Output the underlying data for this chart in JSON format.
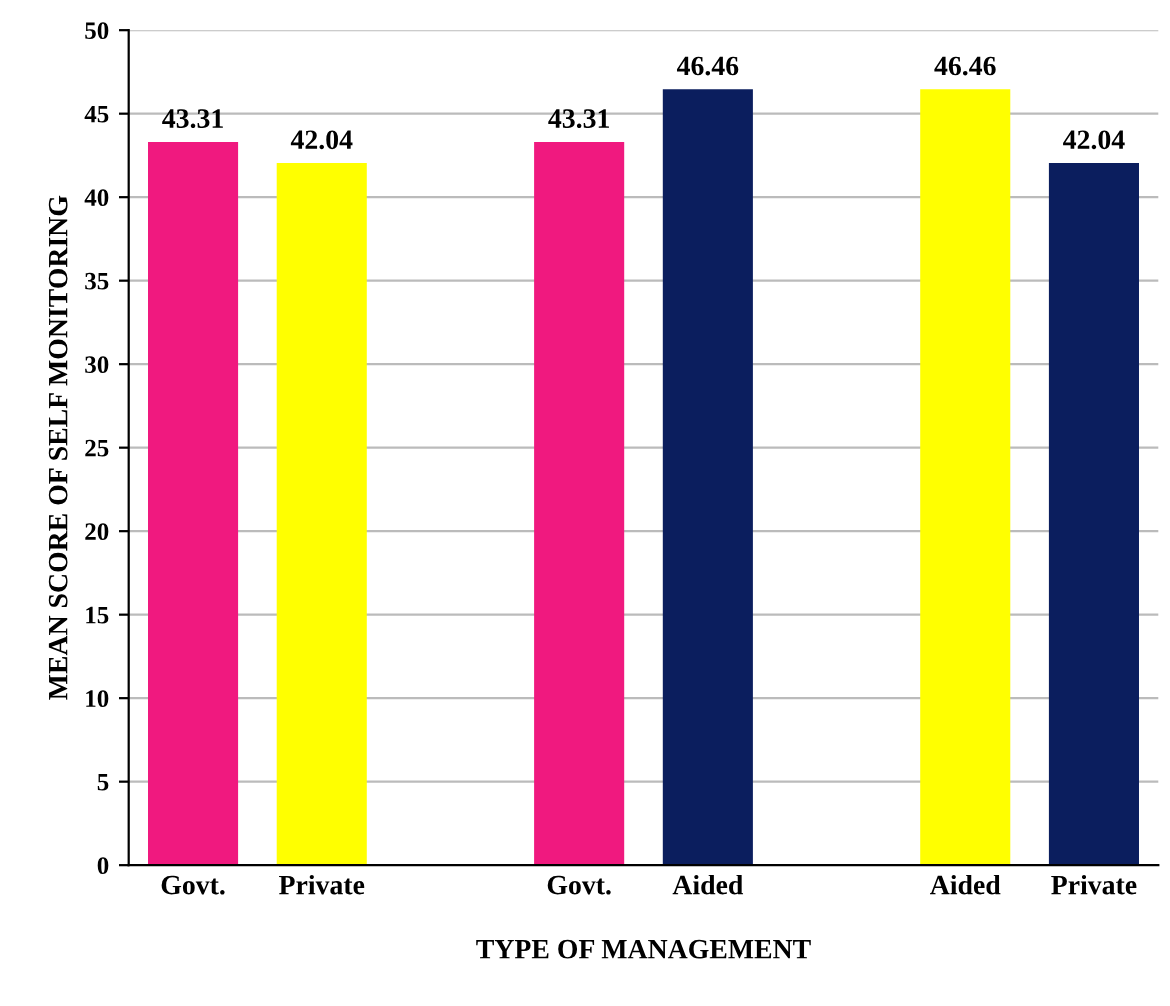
{
  "chart_data": {
    "type": "bar",
    "categories": [
      "Govt.",
      "Private",
      null,
      "Govt.",
      "Aided",
      null,
      "Aided",
      "Private"
    ],
    "values": [
      43.31,
      42.04,
      null,
      43.31,
      46.46,
      null,
      46.46,
      42.04
    ],
    "colors": [
      "#f0197f",
      "#ffff00",
      "#ffffff",
      "#f0197f",
      "#0b1e5e",
      "#ffffff",
      "#ffff00",
      "#0b1e5e"
    ],
    "xlabel": "TYPE OF MANAGEMENT",
    "ylabel": "MEAN SCORE OF SELF MONITORING",
    "ylim": [
      0,
      50
    ],
    "yticks": [
      0,
      5,
      10,
      15,
      20,
      25,
      30,
      35,
      40,
      45,
      50
    ],
    "grid": "y",
    "data_labels": true
  }
}
